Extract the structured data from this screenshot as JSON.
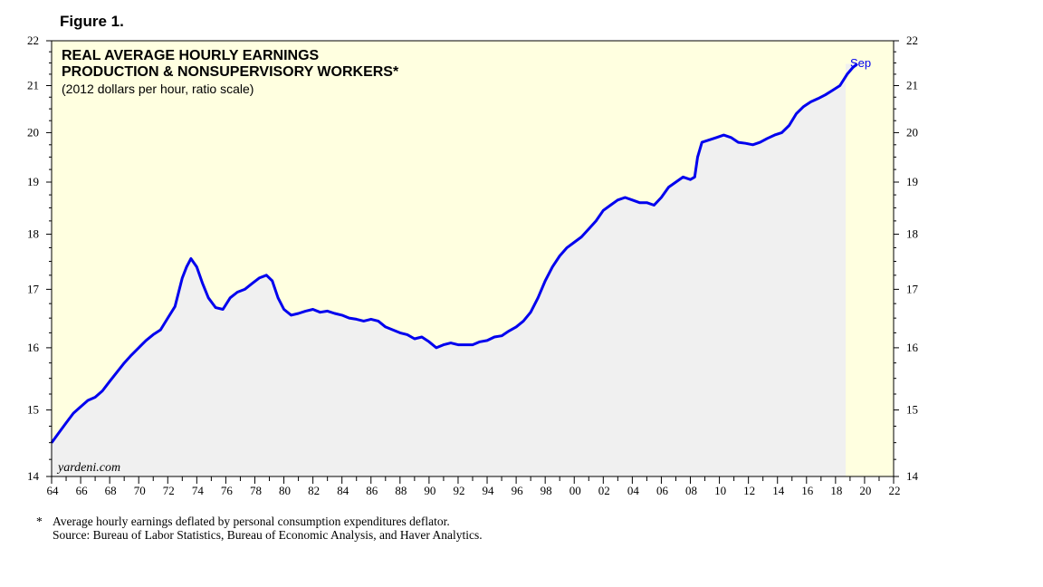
{
  "figure_label": "Figure 1.",
  "footnote": "Average hourly earnings deflated by personal consumption expenditures deflator.",
  "footnote_marker": "*",
  "source": "Source: Bureau of Labor Statistics, Bureau of Economic Analysis, and Haver Analytics.",
  "colors": {
    "plot_bg": "#ffffe0",
    "area_fill": "#f0f0f0",
    "line": "#0000ee",
    "axis": "#000000"
  },
  "chart_data": {
    "type": "line",
    "title": "REAL AVERAGE HOURLY EARNINGS",
    "subtitle": "PRODUCTION & NONSUPERVISORY WORKERS*",
    "subtitle2": "(2012 dollars per hour, ratio scale)",
    "watermark": "yardeni.com",
    "end_label": "Sep",
    "scale": "log",
    "ylim": [
      14,
      22
    ],
    "xlim": [
      1964,
      2022
    ],
    "y_ticks": [
      14,
      15,
      16,
      17,
      18,
      19,
      20,
      21,
      22
    ],
    "x_ticks": [
      "64",
      "66",
      "68",
      "70",
      "72",
      "74",
      "76",
      "78",
      "80",
      "82",
      "84",
      "86",
      "88",
      "90",
      "92",
      "94",
      "96",
      "98",
      "00",
      "02",
      "04",
      "06",
      "08",
      "10",
      "12",
      "14",
      "16",
      "18",
      "20",
      "22"
    ],
    "series": [
      {
        "values": [
          [
            1964.0,
            14.5
          ],
          [
            1964.5,
            14.65
          ],
          [
            1965.0,
            14.8
          ],
          [
            1965.5,
            14.95
          ],
          [
            1966.0,
            15.05
          ],
          [
            1966.5,
            15.15
          ],
          [
            1967.0,
            15.2
          ],
          [
            1967.5,
            15.3
          ],
          [
            1968.0,
            15.45
          ],
          [
            1968.5,
            15.6
          ],
          [
            1969.0,
            15.75
          ],
          [
            1969.5,
            15.88
          ],
          [
            1970.0,
            16.0
          ],
          [
            1970.5,
            16.12
          ],
          [
            1971.0,
            16.22
          ],
          [
            1971.5,
            16.3
          ],
          [
            1972.0,
            16.5
          ],
          [
            1972.5,
            16.7
          ],
          [
            1973.0,
            17.2
          ],
          [
            1973.3,
            17.4
          ],
          [
            1973.6,
            17.55
          ],
          [
            1974.0,
            17.4
          ],
          [
            1974.4,
            17.1
          ],
          [
            1974.8,
            16.85
          ],
          [
            1975.3,
            16.68
          ],
          [
            1975.8,
            16.65
          ],
          [
            1976.3,
            16.85
          ],
          [
            1976.8,
            16.95
          ],
          [
            1977.3,
            17.0
          ],
          [
            1977.8,
            17.1
          ],
          [
            1978.3,
            17.2
          ],
          [
            1978.8,
            17.25
          ],
          [
            1979.2,
            17.15
          ],
          [
            1979.6,
            16.85
          ],
          [
            1980.0,
            16.65
          ],
          [
            1980.5,
            16.55
          ],
          [
            1981.0,
            16.58
          ],
          [
            1981.5,
            16.62
          ],
          [
            1982.0,
            16.65
          ],
          [
            1982.5,
            16.6
          ],
          [
            1983.0,
            16.62
          ],
          [
            1983.5,
            16.58
          ],
          [
            1984.0,
            16.55
          ],
          [
            1984.5,
            16.5
          ],
          [
            1985.0,
            16.48
          ],
          [
            1985.5,
            16.45
          ],
          [
            1986.0,
            16.48
          ],
          [
            1986.5,
            16.45
          ],
          [
            1987.0,
            16.35
          ],
          [
            1987.5,
            16.3
          ],
          [
            1988.0,
            16.25
          ],
          [
            1988.5,
            16.22
          ],
          [
            1989.0,
            16.15
          ],
          [
            1989.5,
            16.18
          ],
          [
            1990.0,
            16.1
          ],
          [
            1990.5,
            16.0
          ],
          [
            1991.0,
            16.05
          ],
          [
            1991.5,
            16.08
          ],
          [
            1992.0,
            16.05
          ],
          [
            1992.5,
            16.05
          ],
          [
            1993.0,
            16.05
          ],
          [
            1993.5,
            16.1
          ],
          [
            1994.0,
            16.12
          ],
          [
            1994.5,
            16.18
          ],
          [
            1995.0,
            16.2
          ],
          [
            1995.5,
            16.28
          ],
          [
            1996.0,
            16.35
          ],
          [
            1996.5,
            16.45
          ],
          [
            1997.0,
            16.6
          ],
          [
            1997.5,
            16.85
          ],
          [
            1998.0,
            17.15
          ],
          [
            1998.5,
            17.4
          ],
          [
            1999.0,
            17.6
          ],
          [
            1999.5,
            17.75
          ],
          [
            2000.0,
            17.85
          ],
          [
            2000.5,
            17.95
          ],
          [
            2001.0,
            18.1
          ],
          [
            2001.5,
            18.25
          ],
          [
            2002.0,
            18.45
          ],
          [
            2002.5,
            18.55
          ],
          [
            2003.0,
            18.65
          ],
          [
            2003.5,
            18.7
          ],
          [
            2004.0,
            18.65
          ],
          [
            2004.5,
            18.6
          ],
          [
            2005.0,
            18.6
          ],
          [
            2005.5,
            18.55
          ],
          [
            2006.0,
            18.7
          ],
          [
            2006.5,
            18.9
          ],
          [
            2007.0,
            19.0
          ],
          [
            2007.5,
            19.1
          ],
          [
            2008.0,
            19.05
          ],
          [
            2008.3,
            19.1
          ],
          [
            2008.5,
            19.5
          ],
          [
            2008.8,
            19.8
          ],
          [
            2009.3,
            19.85
          ],
          [
            2009.8,
            19.9
          ],
          [
            2010.3,
            19.95
          ],
          [
            2010.8,
            19.9
          ],
          [
            2011.3,
            19.8
          ],
          [
            2011.8,
            19.78
          ],
          [
            2012.3,
            19.75
          ],
          [
            2012.8,
            19.8
          ],
          [
            2013.3,
            19.88
          ],
          [
            2013.8,
            19.95
          ],
          [
            2014.3,
            20.0
          ],
          [
            2014.8,
            20.15
          ],
          [
            2015.3,
            20.4
          ],
          [
            2015.8,
            20.55
          ],
          [
            2016.3,
            20.65
          ],
          [
            2016.8,
            20.72
          ],
          [
            2017.3,
            20.8
          ],
          [
            2017.8,
            20.9
          ],
          [
            2018.3,
            21.0
          ],
          [
            2018.8,
            21.25
          ],
          [
            2019.2,
            21.4
          ],
          [
            2019.5,
            21.48
          ]
        ]
      }
    ]
  }
}
